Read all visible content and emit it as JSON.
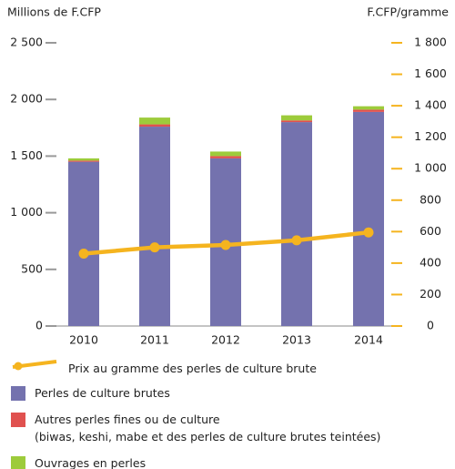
{
  "chart_data": {
    "type": "bar",
    "stacked": true,
    "y_label": "Millions de F.CFP",
    "y2_label": "F.CFP/gramme",
    "categories": [
      "2010",
      "2011",
      "2012",
      "2013",
      "2014"
    ],
    "ylim": [
      0,
      2500
    ],
    "yticks": [
      0,
      500,
      {
        "value": 1000,
        "label": "1 000"
      },
      {
        "value": 1500,
        "label": "1 500"
      },
      {
        "value": 2000,
        "label": "2 000"
      },
      {
        "value": 2500,
        "label": "2 500"
      }
    ],
    "y2lim": [
      0,
      1800
    ],
    "y2ticks": [
      0,
      200,
      400,
      600,
      800,
      {
        "value": 1000,
        "label": "1 000"
      },
      {
        "value": 1200,
        "label": "1 200"
      },
      {
        "value": 1400,
        "label": "1 400"
      },
      {
        "value": 1600,
        "label": "1 600"
      },
      {
        "value": 1800,
        "label": "1 800"
      }
    ],
    "series": [
      {
        "name": "Perles de culture brutes",
        "type": "bar",
        "color": "#7472ae",
        "values": [
          1450,
          1760,
          1480,
          1800,
          1890
        ]
      },
      {
        "name": "Autres perles fines ou de culture\n(biwas, keshi, mabe et des perles de culture brutes teintées)",
        "type": "bar",
        "color": "#e0514f",
        "values": [
          10,
          20,
          20,
          15,
          20
        ]
      },
      {
        "name": "Ouvrages en perles",
        "type": "bar",
        "color": "#9dcb3b",
        "values": [
          20,
          60,
          40,
          45,
          30
        ]
      },
      {
        "name": "Prix au gramme des perles de culture brute",
        "type": "line",
        "axis": "y2",
        "color": "#f5b41f",
        "values": [
          460,
          500,
          515,
          545,
          595
        ]
      }
    ]
  }
}
